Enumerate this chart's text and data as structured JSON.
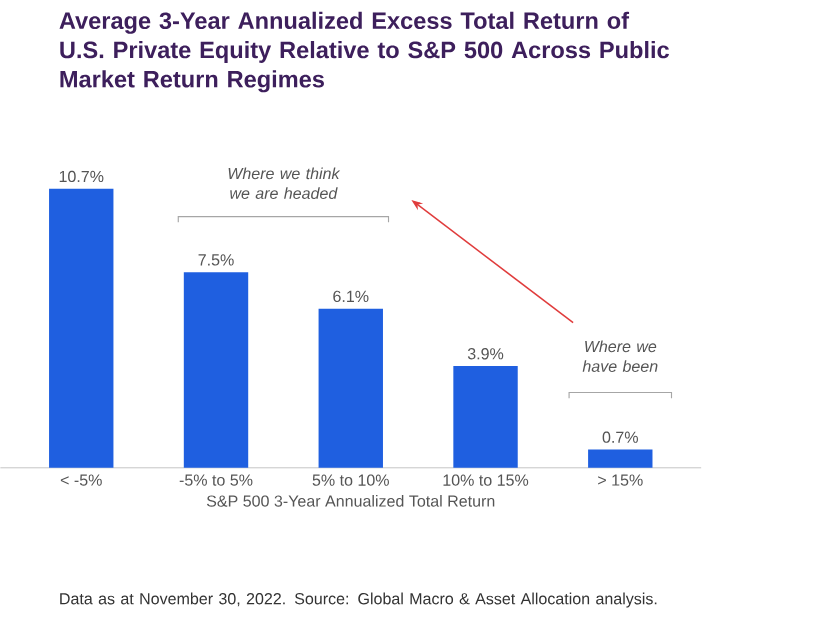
{
  "chart_data": {
    "type": "bar",
    "title": "Average 3-Year Annualized Excess Total Return of U.S. Private Equity Relative to S&P 500 Across Public Market Return Regimes",
    "xlabel": "S&P 500 3-Year Annualized Total Return",
    "categories": [
      "< -5%",
      "-5% to 5%",
      "5% to 10%",
      "10% to 15%",
      "> 15%"
    ],
    "values": [
      10.7,
      7.5,
      6.1,
      3.9,
      0.7
    ],
    "value_labels": [
      "10.7%",
      "7.5%",
      "6.1%",
      "3.9%",
      "0.7%"
    ],
    "color": "#1f5fe0",
    "annotations": [
      "Where we think we are headed",
      "Where we have been",
      "Data as at November 30, 2022. Source: Global Macro & Asset Allocation analysis."
    ]
  }
}
